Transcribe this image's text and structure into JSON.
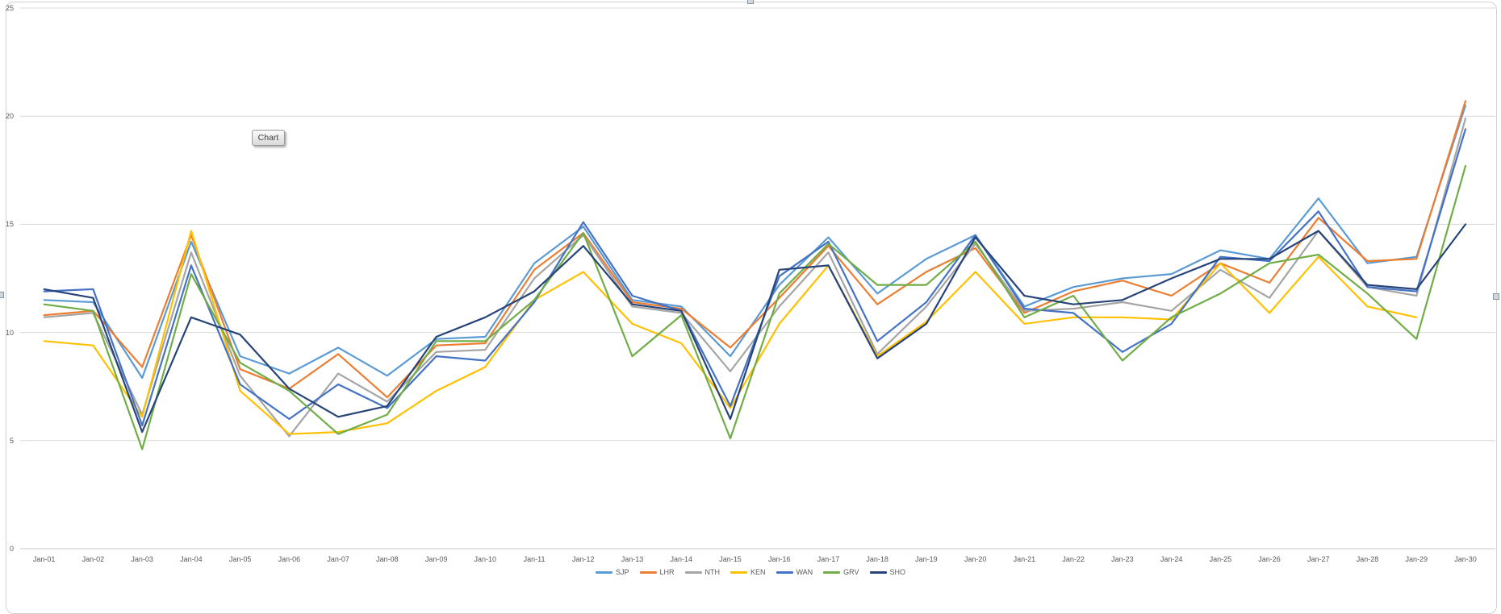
{
  "chart_overlay_button": {
    "label": "Chart"
  },
  "chart_data": {
    "type": "line",
    "title": "",
    "xlabel": "",
    "ylabel": "",
    "categories": [
      "Jan-01",
      "Jan-02",
      "Jan-03",
      "Jan-04",
      "Jan-05",
      "Jan-06",
      "Jan-07",
      "Jan-08",
      "Jan-09",
      "Jan-10",
      "Jan-11",
      "Jan-12",
      "Jan-13",
      "Jan-14",
      "Jan-15",
      "Jan-16",
      "Jan-17",
      "Jan-18",
      "Jan-19",
      "Jan-20",
      "Jan-21",
      "Jan-22",
      "Jan-23",
      "Jan-24",
      "Jan-25",
      "Jan-26",
      "Jan-27",
      "Jan-28",
      "Jan-29",
      "Jan-30"
    ],
    "series": [
      {
        "name": "SJP",
        "color": "#5B9BD5",
        "values": [
          11.5,
          11.4,
          7.9,
          14.2,
          8.9,
          8.1,
          9.3,
          8.0,
          9.7,
          9.8,
          13.2,
          14.9,
          11.5,
          11.2,
          8.9,
          12.2,
          14.4,
          11.8,
          13.4,
          14.5,
          11.2,
          12.1,
          12.5,
          12.7,
          13.8,
          13.4,
          16.2,
          13.2,
          13.5,
          20.5
        ]
      },
      {
        "name": "LHR",
        "color": "#ED7D31",
        "values": [
          10.8,
          11.0,
          8.4,
          14.5,
          8.3,
          7.4,
          9.0,
          7.0,
          9.4,
          9.5,
          12.9,
          14.6,
          11.4,
          11.1,
          9.3,
          11.6,
          14.0,
          11.3,
          12.8,
          13.9,
          10.9,
          11.9,
          12.4,
          11.7,
          13.2,
          12.3,
          15.3,
          13.3,
          13.4,
          20.7
        ]
      },
      {
        "name": "NTH",
        "color": "#A5A5A5",
        "values": [
          10.7,
          10.9,
          6.2,
          13.7,
          8.0,
          5.2,
          8.1,
          6.8,
          9.1,
          9.2,
          12.5,
          14.5,
          11.2,
          10.9,
          8.2,
          11.2,
          13.7,
          9.0,
          11.2,
          14.1,
          11.0,
          11.1,
          11.4,
          11.0,
          12.9,
          11.6,
          14.7,
          12.1,
          11.7,
          19.9
        ]
      },
      {
        "name": "KEN",
        "color": "#FFC000",
        "values": [
          9.6,
          9.4,
          6.1,
          14.7,
          7.3,
          5.3,
          5.4,
          5.8,
          7.3,
          8.4,
          11.5,
          12.8,
          10.4,
          9.5,
          6.5,
          10.4,
          13.1,
          8.9,
          10.5,
          12.8,
          10.4,
          10.7,
          10.7,
          10.6,
          13.2,
          10.9,
          13.5,
          11.2,
          10.7,
          null
        ]
      },
      {
        "name": "WAN",
        "color": "#4472C4",
        "values": [
          11.9,
          12.0,
          5.7,
          13.1,
          7.6,
          6.0,
          7.6,
          6.5,
          8.9,
          8.7,
          11.4,
          15.1,
          11.7,
          11.0,
          6.6,
          12.6,
          14.2,
          9.6,
          11.4,
          14.5,
          11.1,
          10.9,
          9.1,
          10.4,
          13.5,
          13.3,
          15.6,
          12.1,
          11.9,
          19.4
        ]
      },
      {
        "name": "GRV",
        "color": "#70AD47",
        "values": [
          11.3,
          11.0,
          4.6,
          12.7,
          8.6,
          7.3,
          5.3,
          6.2,
          9.6,
          9.6,
          11.5,
          14.6,
          8.9,
          10.8,
          5.1,
          11.8,
          14.1,
          12.2,
          12.2,
          14.2,
          10.7,
          11.7,
          8.7,
          10.7,
          11.8,
          13.2,
          13.6,
          11.8,
          9.7,
          17.7
        ]
      },
      {
        "name": "SHO",
        "color": "#264478",
        "values": [
          12.0,
          11.6,
          5.4,
          10.7,
          9.9,
          7.4,
          6.1,
          6.6,
          9.8,
          10.7,
          11.9,
          14.0,
          11.3,
          11.0,
          6.0,
          12.9,
          13.1,
          8.8,
          10.4,
          14.4,
          11.7,
          11.3,
          11.5,
          12.5,
          13.4,
          13.4,
          14.7,
          12.2,
          12.0,
          15.0
        ]
      }
    ],
    "ylim": [
      0,
      25
    ],
    "yticks": [
      0,
      5,
      10,
      15,
      20,
      25
    ],
    "grid": true,
    "gridline_color": "#d9d9d9",
    "axis_line_color": "#c8c8c8",
    "tick_label_color": "#595959",
    "legend_position": "bottom"
  }
}
